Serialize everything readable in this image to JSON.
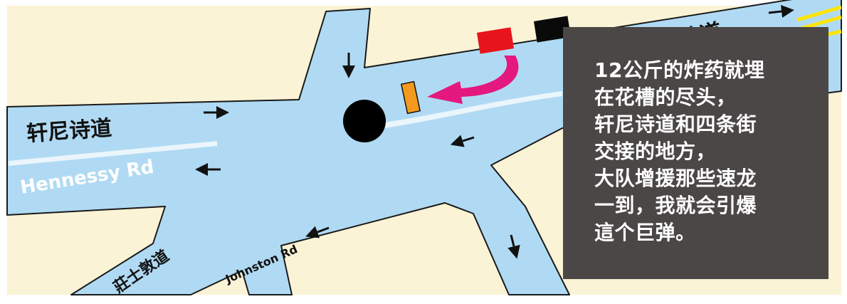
{
  "map": {
    "colors": {
      "land": "#fbf3d6",
      "road": "#b0daf3",
      "outline": "#1a1a1a",
      "tram_line": "#eaf5fc",
      "bomb": "#000000",
      "planter": "#f39a1e",
      "arrow": "#e5187f",
      "red_block": "#e8141c",
      "black_block": "#0a0a0a",
      "yellow_lines": "#ffe600",
      "caption_bg": "#4a4746",
      "caption_text": "#ffffff"
    },
    "labels": {
      "hennessy_cn_left": "轩尼诗道",
      "hennessy_en": "Hennessy Rd",
      "hennessy_cn_top": "轩尼诗道",
      "johnston_en": "Johnston Rd",
      "johnston_cn": "莊士敦道"
    },
    "icons": [
      "bomb-icon",
      "planter-icon",
      "curved-arrow-icon",
      "direction-arrow-icon"
    ]
  },
  "caption": {
    "lines": [
      "12公斤的炸药就埋",
      "在花槽的尽头，",
      "轩尼诗道和四条街",
      "交接的地方，",
      "大队增援那些速龙",
      "一到，我就会引爆",
      "這个巨弹。"
    ]
  }
}
